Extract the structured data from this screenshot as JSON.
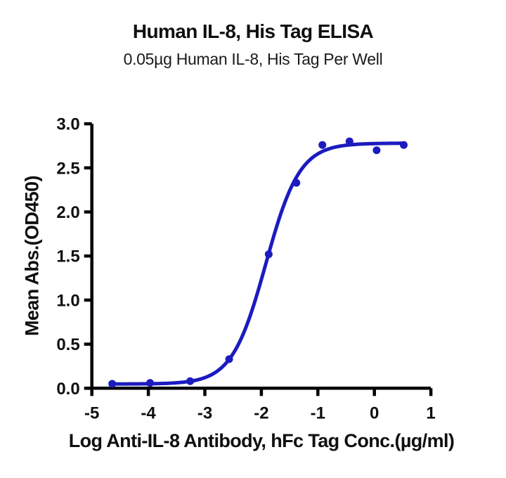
{
  "header": {
    "title": "Human IL-8, His Tag ELISA",
    "subtitle": "0.05µg Human IL-8, His Tag Per Well"
  },
  "chart_data": {
    "type": "scatter",
    "title": "Human IL-8, His Tag ELISA",
    "subtitle": "0.05µg Human IL-8, His Tag Per Well",
    "xlabel": "Log Anti-IL-8 Antibody, hFc Tag Conc.(µg/ml)",
    "ylabel": "Mean Abs.(OD450)",
    "xlim": [
      -5,
      1
    ],
    "ylim": [
      0,
      3
    ],
    "x_ticks": [
      -5,
      -4,
      -3,
      -2,
      -1,
      0,
      1
    ],
    "x_tick_labels": [
      "-5",
      "-4",
      "-3",
      "-2",
      "-1",
      "0",
      "1"
    ],
    "y_ticks": [
      0,
      0.5,
      1,
      1.5,
      2,
      2.5,
      3
    ],
    "y_tick_labels": [
      "0.0",
      "0.5",
      "1.0",
      "1.5",
      "2.0",
      "2.5",
      "3.0"
    ],
    "grid": false,
    "legend": false,
    "series": [
      {
        "name": "Anti-IL-8 Antibody, hFc Tag",
        "marker": "circle",
        "color": "#1b1bc0",
        "x": [
          -4.64,
          -3.97,
          -3.26,
          -2.57,
          -1.87,
          -1.38,
          -0.92,
          -0.44,
          0.04,
          0.52
        ],
        "y": [
          0.05,
          0.06,
          0.08,
          0.33,
          1.52,
          2.33,
          2.76,
          2.8,
          2.7,
          2.76
        ]
      }
    ],
    "fit_curve": {
      "model": "4PL",
      "bottom": 0.048,
      "top": 2.78,
      "log_ec50": -1.92,
      "hill_slope": 1.45,
      "x_start": -4.64,
      "x_end": 0.52,
      "color": "#1b1bc0"
    },
    "axis_color": "#000000"
  }
}
